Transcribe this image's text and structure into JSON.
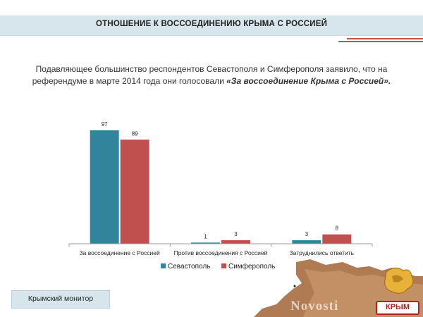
{
  "header": {
    "title": "ОТНОШЕНИЕ К ВОССОЕДИНЕНИЮ КРЫМА С РОССИЕЙ"
  },
  "intro": {
    "line1": "Подавляющее большинство респондентов Севастополя и Симферополя заявило, что на",
    "line2_prefix": "референдуме в марте 2014 года они голосовали ",
    "line2_emph": "«За воссоединение Крыма с Россией»."
  },
  "colors": {
    "sevastopol": "#31849b",
    "simferopol": "#c0504d",
    "accent": "#4a7fa7"
  },
  "chart_data": {
    "type": "bar",
    "categories": [
      "За воссоединение с Россией",
      "Против воссоединения с Россией",
      "Затруднились ответить"
    ],
    "series": [
      {
        "name": "Севастополь",
        "values": [
          97,
          1,
          3
        ]
      },
      {
        "name": "Симферополь",
        "values": [
          89,
          3,
          8
        ]
      }
    ],
    "ylim": [
      0,
      100
    ],
    "grid": false,
    "legend": "bottom"
  },
  "footer": {
    "label": "Крымский монитор"
  },
  "watermark": {
    "text": "Novosti",
    "logo": "КРЫМ"
  }
}
